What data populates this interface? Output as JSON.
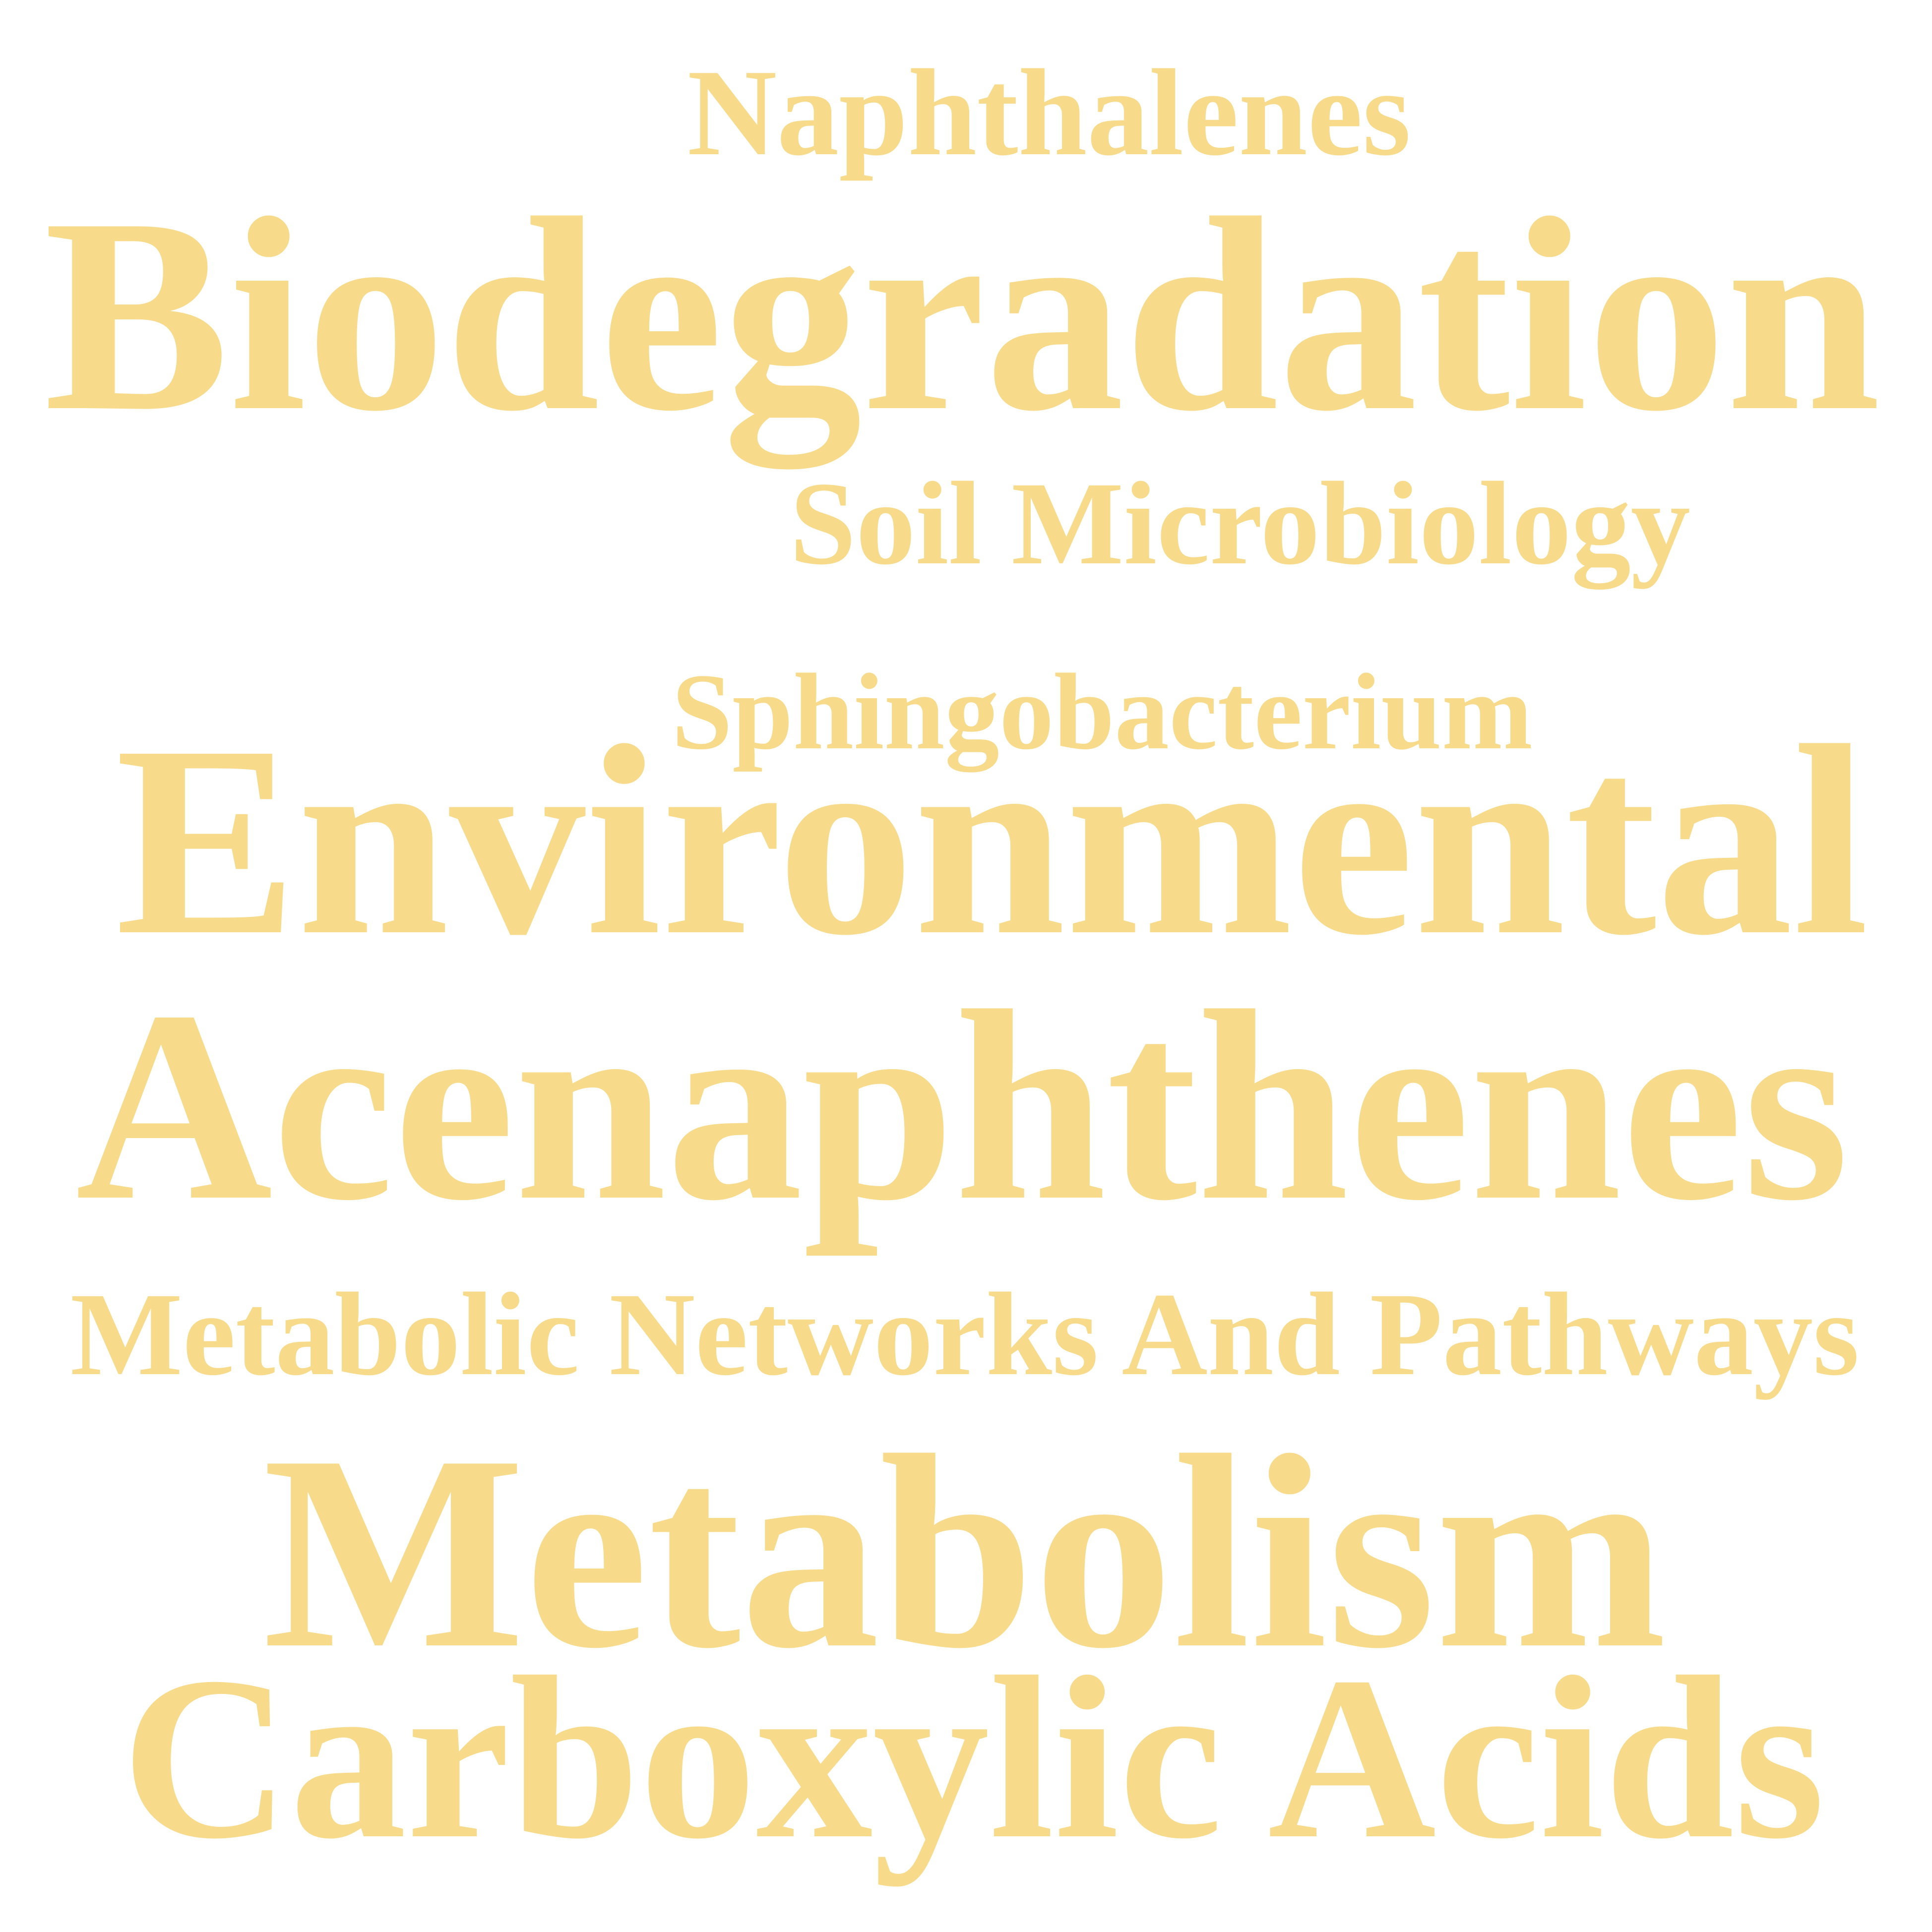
{
  "word_cloud": {
    "color": "#F7DA8A",
    "background": "#FFFFFF",
    "words": [
      {
        "text": "Naphthalenes"
      },
      {
        "text": "Biodegradation"
      },
      {
        "text": "Soil Microbiology"
      },
      {
        "text": "Sphingobacterium"
      },
      {
        "text": "Environmental"
      },
      {
        "text": "Acenaphthenes"
      },
      {
        "text": "Metabolic Networks And Pathways"
      },
      {
        "text": "Metabolism"
      },
      {
        "text": "Carboxylic Acids"
      }
    ]
  }
}
